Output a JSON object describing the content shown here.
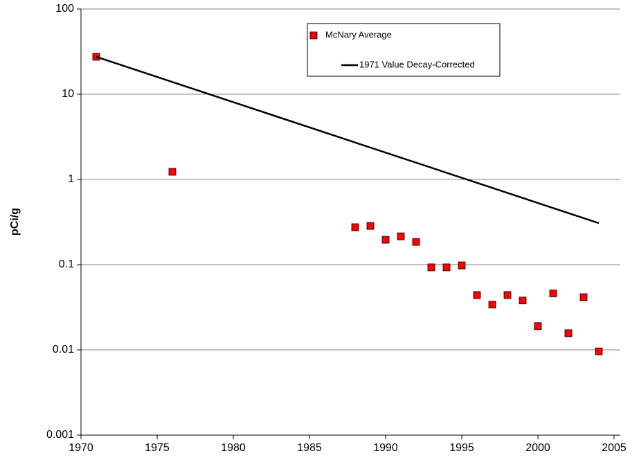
{
  "chart_data": {
    "type": "scatter",
    "y_label": "pCi/g",
    "y_scale": "log",
    "grid": true,
    "xlim": [
      1970,
      2005
    ],
    "xticks": [
      1970,
      1975,
      1980,
      1985,
      1990,
      1995,
      2000,
      2005
    ],
    "ylim": [
      0.001,
      100
    ],
    "yticks": [
      0.001,
      0.01,
      0.1,
      1,
      10,
      100
    ],
    "series": [
      {
        "name": "McNary Average",
        "type": "scatter",
        "color": "#ff0000",
        "x": [
          1971,
          1976,
          1988,
          1989,
          1990,
          1991,
          1992,
          1993,
          1994,
          1995,
          1996,
          1997,
          1998,
          1999,
          2000,
          2001,
          2002,
          2003,
          2004
        ],
        "values": [
          27.5,
          1.23,
          0.275,
          0.285,
          0.196,
          0.215,
          0.185,
          0.093,
          0.093,
          0.098,
          0.044,
          0.034,
          0.044,
          0.038,
          0.019,
          0.046,
          0.0157,
          0.0415,
          0.0096
        ]
      },
      {
        "name": "1971 Value Decay-Corrected",
        "type": "line",
        "color": "#000000",
        "x": [
          1971,
          2004
        ],
        "values": [
          27.5,
          0.307
        ]
      }
    ]
  }
}
